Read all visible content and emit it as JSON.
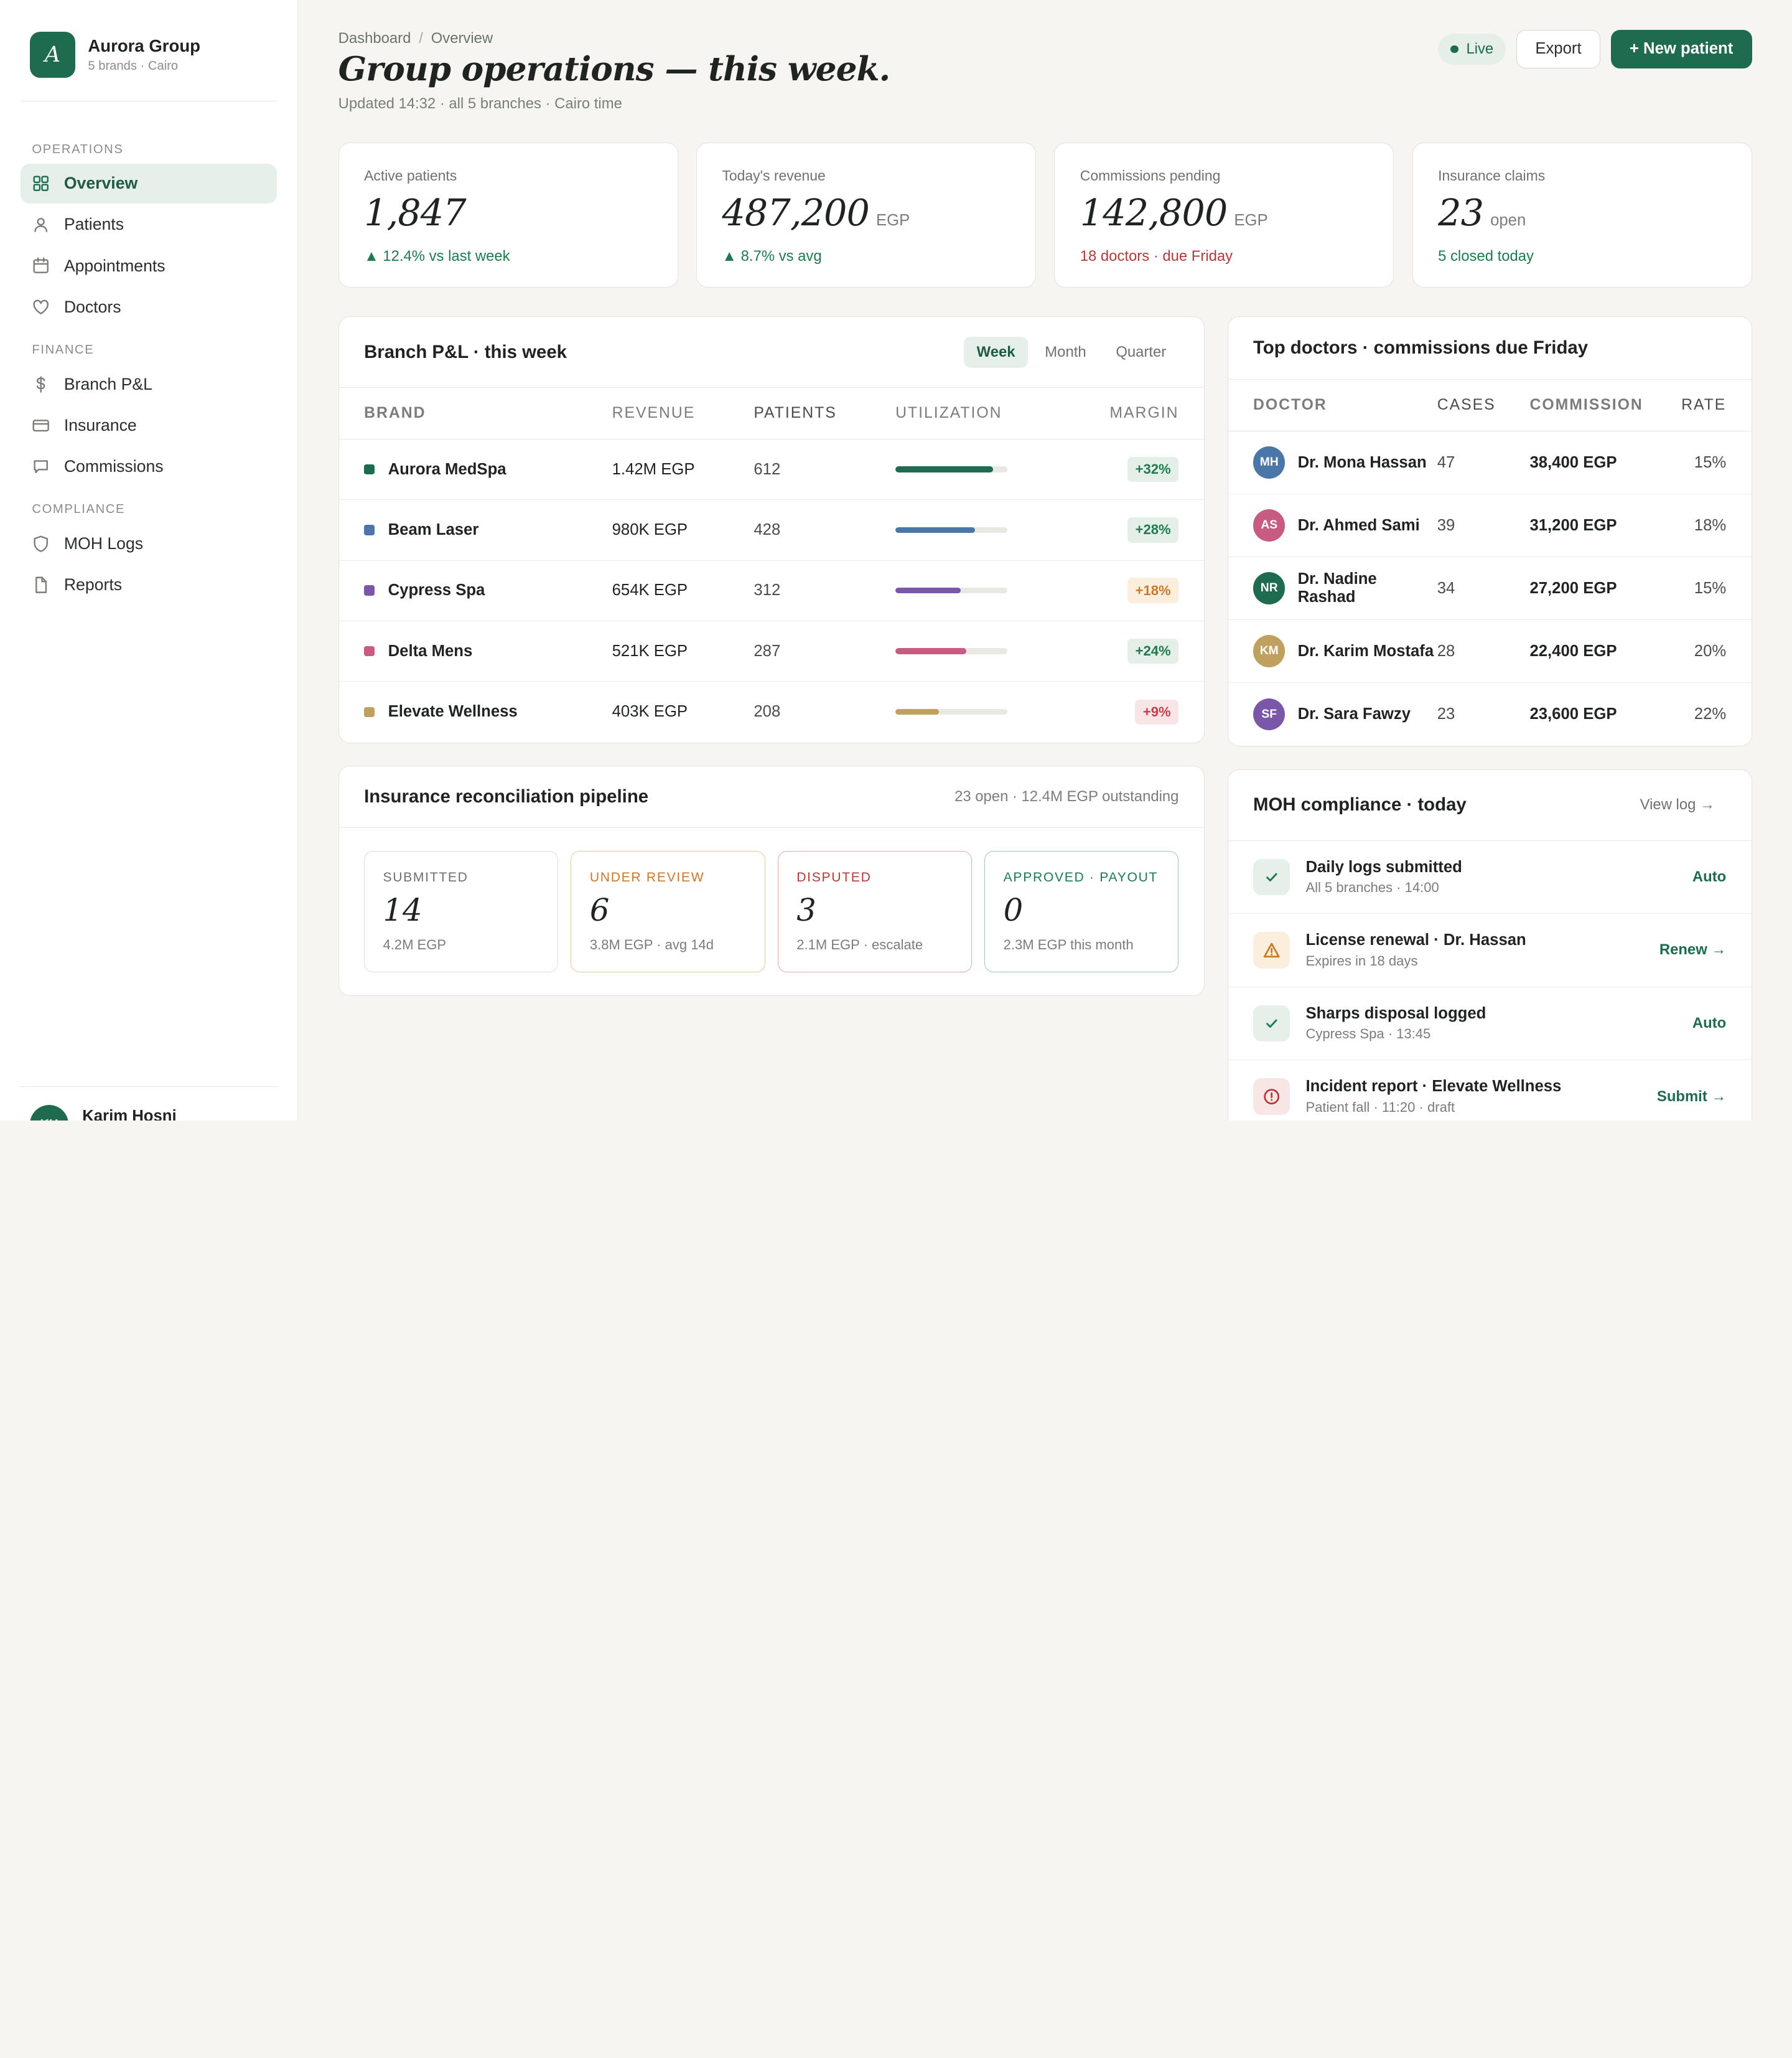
{
  "brand": {
    "name": "Aurora Group",
    "sub": "5 brands · Cairo",
    "logo_letter": "A"
  },
  "nav": {
    "sections": [
      {
        "label": "OPERATIONS",
        "items": [
          {
            "label": "Overview",
            "icon": "grid-icon",
            "active": true
          },
          {
            "label": "Patients",
            "icon": "user-icon"
          },
          {
            "label": "Appointments",
            "icon": "calendar-icon"
          },
          {
            "label": "Doctors",
            "icon": "heart-icon"
          }
        ]
      },
      {
        "label": "FINANCE",
        "items": [
          {
            "label": "Branch P&L",
            "icon": "dollar-icon"
          },
          {
            "label": "Insurance",
            "icon": "card-icon"
          },
          {
            "label": "Commissions",
            "icon": "chat-icon"
          }
        ]
      },
      {
        "label": "COMPLIANCE",
        "items": [
          {
            "label": "MOH Logs",
            "icon": "shield-icon"
          },
          {
            "label": "Reports",
            "icon": "file-icon"
          }
        ]
      }
    ]
  },
  "user": {
    "name": "Karim Hosni",
    "initials": "KH"
  },
  "header": {
    "crumb_1": "Dashboard",
    "crumb_sep": "/",
    "crumb_2": "Overview",
    "title": "Group operations — this week.",
    "updated": "Updated 14:32 · all 5 branches · Cairo time",
    "live": "Live",
    "export": "Export",
    "new_patient": "+ New patient"
  },
  "kpis": [
    {
      "label": "Active patients",
      "value": "1,847",
      "unit": "",
      "foot": "▲ 12.4% vs last week",
      "tone": "pos"
    },
    {
      "label": "Today's revenue",
      "value": "487,200",
      "unit": "EGP",
      "foot": "▲ 8.7% vs avg",
      "tone": "pos"
    },
    {
      "label": "Commissions pending",
      "value": "142,800",
      "unit": "EGP",
      "foot": "18 doctors · due Friday",
      "tone": "neg"
    },
    {
      "label": "Insurance claims",
      "value": "23",
      "unit": "open",
      "foot": "5 closed today",
      "tone": "pos"
    }
  ],
  "pnl": {
    "title": "Branch P&L · this week",
    "periods": [
      "Week",
      "Month",
      "Quarter"
    ],
    "columns": [
      "BRAND",
      "REVENUE",
      "PATIENTS",
      "UTILIZATION",
      "MARGIN"
    ],
    "rows": [
      {
        "brand": "Aurora MedSpa",
        "color": "#1f6b50",
        "revenue": "1.42M EGP",
        "patients": "612",
        "util": 0.87,
        "margin": "+32%",
        "tone": "good"
      },
      {
        "brand": "Beam Laser",
        "color": "#4a77a8",
        "revenue": "980K EGP",
        "patients": "428",
        "util": 0.71,
        "margin": "+28%",
        "tone": "good"
      },
      {
        "brand": "Cypress Spa",
        "color": "#7b57a8",
        "revenue": "654K EGP",
        "patients": "312",
        "util": 0.58,
        "margin": "+18%",
        "tone": "warn"
      },
      {
        "brand": "Delta Mens",
        "color": "#c75b82",
        "revenue": "521K EGP",
        "patients": "287",
        "util": 0.63,
        "margin": "+24%",
        "tone": "good"
      },
      {
        "brand": "Elevate Wellness",
        "color": "#bfa05e",
        "revenue": "403K EGP",
        "patients": "208",
        "util": 0.39,
        "margin": "+9%",
        "tone": "bad"
      }
    ]
  },
  "pipeline": {
    "title": "Insurance reconciliation pipeline",
    "meta": "23 open · 12.4M EGP outstanding",
    "stages": [
      {
        "label": "SUBMITTED",
        "num": "14",
        "sub": "4.2M EGP",
        "cls": ""
      },
      {
        "label": "UNDER REVIEW",
        "num": "6",
        "sub": "3.8M EGP · avg 14d",
        "cls": "st-review"
      },
      {
        "label": "DISPUTED",
        "num": "3",
        "sub": "2.1M EGP · escalate",
        "cls": "st-disp"
      },
      {
        "label": "APPROVED · PAYOUT",
        "num": "0",
        "sub": "2.3M EGP this month",
        "cls": "st-appr"
      }
    ]
  },
  "doctors": {
    "title": "Top doctors · commissions due Friday",
    "columns": [
      "DOCTOR",
      "CASES",
      "COMMISSION",
      "RATE"
    ],
    "rows": [
      {
        "initials": "MH",
        "color": "#4a77a8",
        "name": "Dr. Mona Hassan",
        "cases": "47",
        "commission": "38,400 EGP",
        "rate": "15%"
      },
      {
        "initials": "AS",
        "color": "#c75b82",
        "name": "Dr. Ahmed Sami",
        "cases": "39",
        "commission": "31,200 EGP",
        "rate": "18%"
      },
      {
        "initials": "NR",
        "color": "#1f6b50",
        "name": "Dr. Nadine Rashad",
        "cases": "34",
        "commission": "27,200 EGP",
        "rate": "15%"
      },
      {
        "initials": "KM",
        "color": "#bfa05e",
        "name": "Dr. Karim Mostafa",
        "cases": "28",
        "commission": "22,400 EGP",
        "rate": "20%"
      },
      {
        "initials": "SF",
        "color": "#7b57a8",
        "name": "Dr. Sara Fawzy",
        "cases": "23",
        "commission": "23,600 EGP",
        "rate": "22%"
      }
    ]
  },
  "moh": {
    "title": "MOH compliance · today",
    "view_log": "View log →",
    "items": [
      {
        "title": "Daily logs submitted",
        "sub": "All 5 branches · 14:00",
        "action": "Auto",
        "kind": "ok"
      },
      {
        "title": "License renewal · Dr. Hassan",
        "sub": "Expires in 18 days",
        "action": "Renew →",
        "kind": "warn"
      },
      {
        "title": "Sharps disposal logged",
        "sub": "Cypress Spa · 13:45",
        "action": "Auto",
        "kind": "ok"
      },
      {
        "title": "Incident report · Elevate Wellness",
        "sub": "Patient fall · 11:20 · draft",
        "action": "Submit →",
        "kind": "bad"
      }
    ]
  }
}
